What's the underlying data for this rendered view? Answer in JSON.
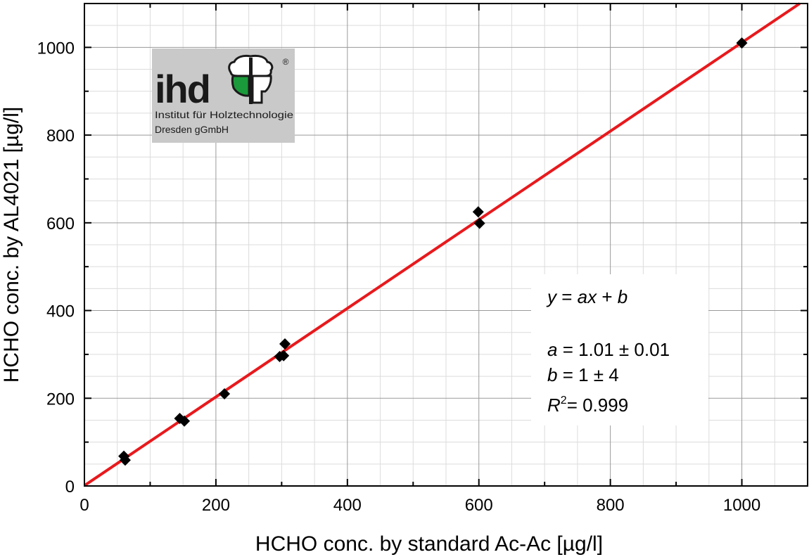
{
  "chart_data": {
    "type": "scatter",
    "xlabel": "HCHO conc. by standard Ac-Ac [µg/l]",
    "ylabel": "HCHO conc. by AL4021 [µg/l]",
    "xlim": [
      0,
      1100
    ],
    "ylim": [
      0,
      1100
    ],
    "x_ticks": [
      0,
      200,
      400,
      600,
      800,
      1000
    ],
    "y_ticks": [
      0,
      200,
      400,
      600,
      800,
      1000
    ],
    "x_tick_labels": [
      "0",
      "200",
      "400",
      "600",
      "800",
      "1000"
    ],
    "y_tick_labels": [
      "0",
      "200",
      "400",
      "600",
      "800",
      "1000"
    ],
    "grid": true,
    "points": [
      {
        "x": 60,
        "y": 68
      },
      {
        "x": 62,
        "y": 59
      },
      {
        "x": 145,
        "y": 154
      },
      {
        "x": 152,
        "y": 148
      },
      {
        "x": 213,
        "y": 210
      },
      {
        "x": 297,
        "y": 295
      },
      {
        "x": 303,
        "y": 297
      },
      {
        "x": 305,
        "y": 324
      },
      {
        "x": 599,
        "y": 625
      },
      {
        "x": 601,
        "y": 599
      },
      {
        "x": 1000,
        "y": 1010
      }
    ],
    "fit_line": {
      "color": "#e8191d",
      "slope": 1.01,
      "intercept": 1
    },
    "marker_color": "#000000",
    "annotation": {
      "equation": {
        "y": "y",
        "eq": " = ",
        "ax": "ax",
        "plus": " + ",
        "b": "b"
      },
      "a": {
        "label": "a",
        "value": " = 1.01 ± 0.01"
      },
      "b": {
        "label": "b",
        "value": " = 1 ± 4"
      },
      "r2": {
        "label": "R",
        "sup": "2",
        "value": "= 0.999"
      }
    }
  },
  "logo": {
    "text": "ihd",
    "name_line1": "Institut für Holztechnologie",
    "name_line2": "Dresden gGmbH",
    "registered": "®",
    "background": "#c9c9c9",
    "accent": "#1a9a3a"
  }
}
